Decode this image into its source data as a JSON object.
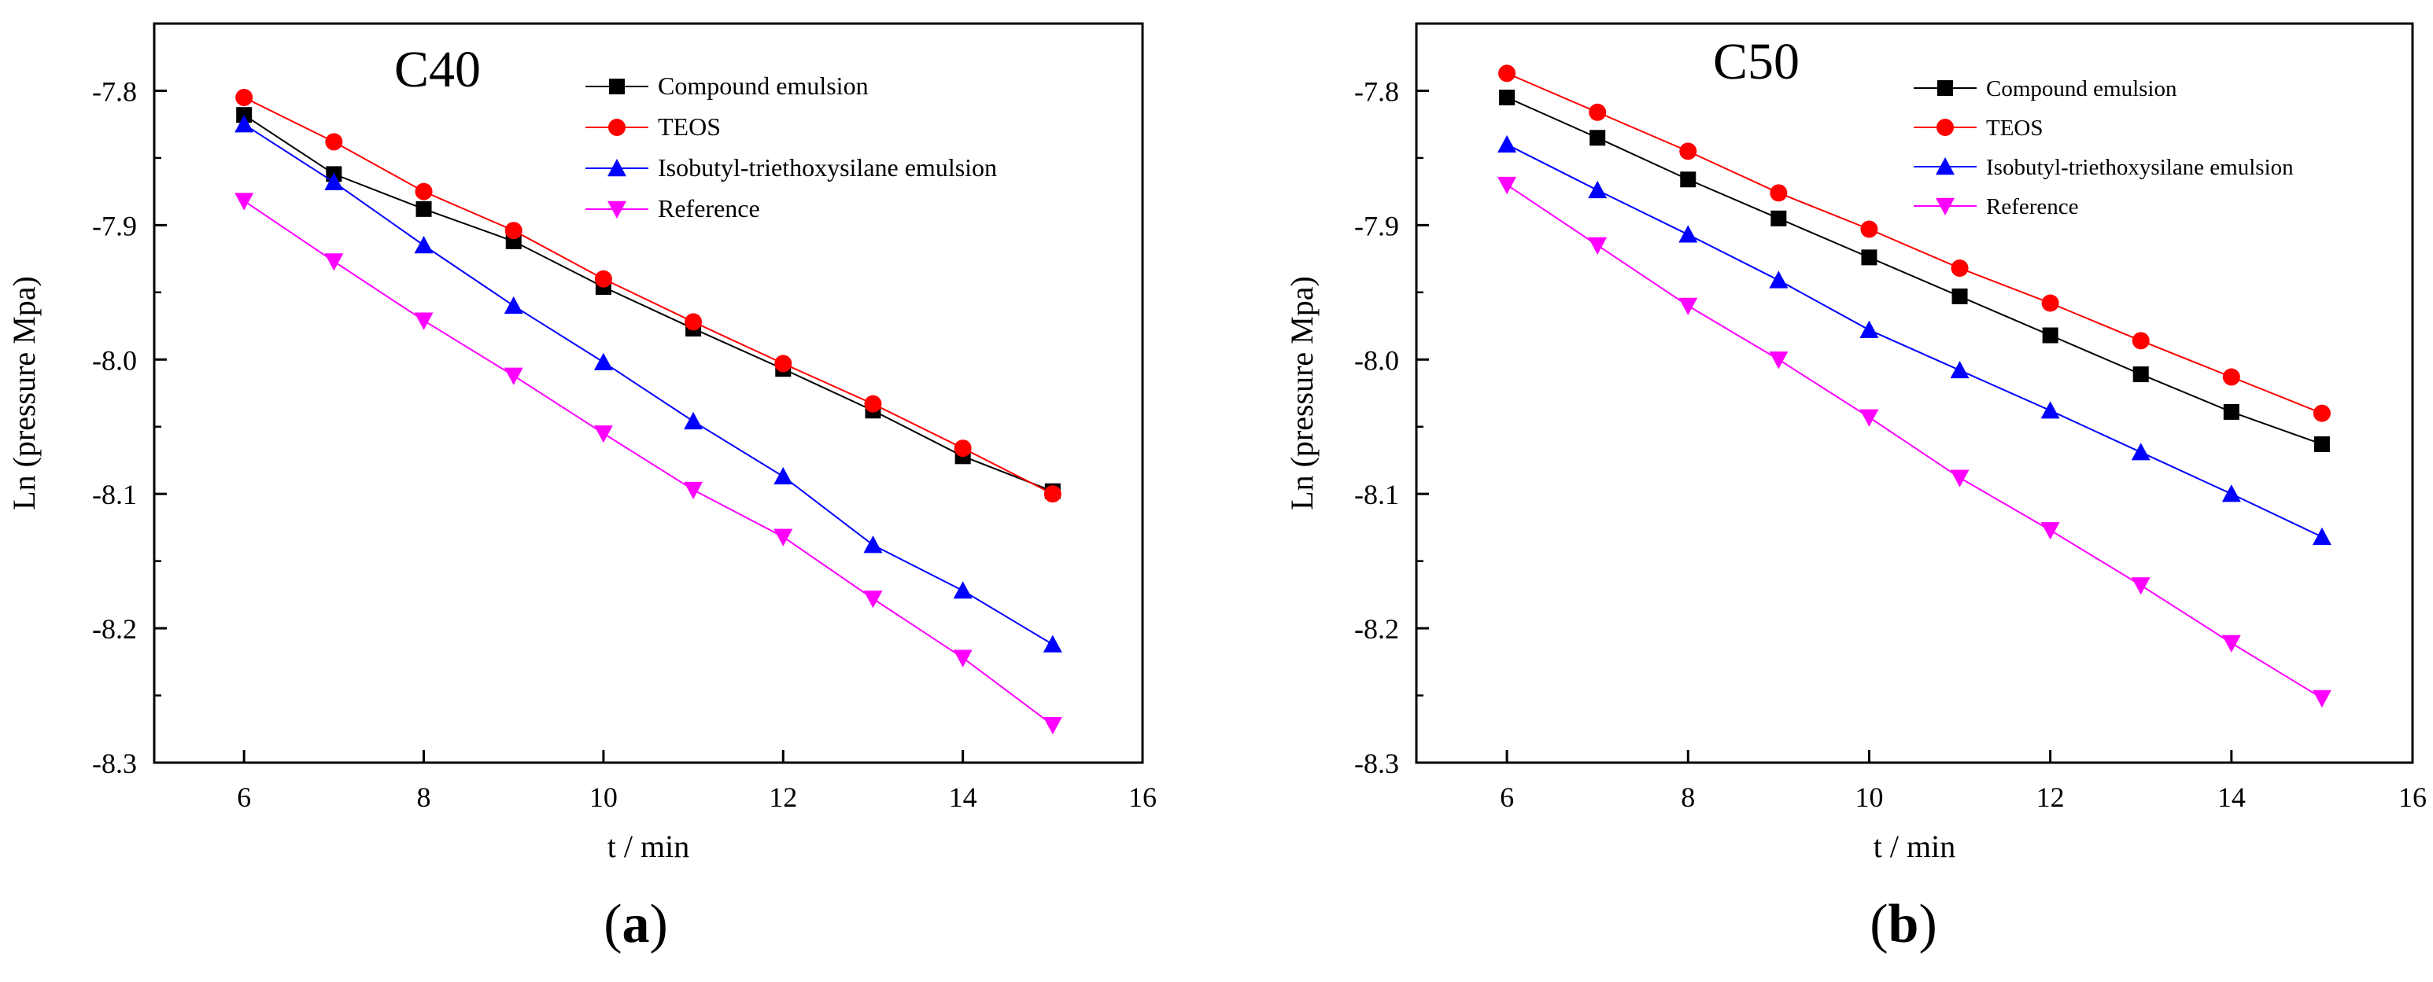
{
  "colors": {
    "compound": "#000000",
    "teos": "#ff0000",
    "isobutyl": "#0000ff",
    "reference": "#ff00ff"
  },
  "chart_data": [
    {
      "type": "line",
      "panel_label": "(a)",
      "panel_letter": "a",
      "inset_title": "C40",
      "xlabel": "t / min",
      "ylabel": "Ln (pressure Mpa)",
      "xlim": [
        5,
        16
      ],
      "ylim": [
        -8.3,
        -7.75
      ],
      "xticks": [
        6,
        8,
        10,
        12,
        14,
        16
      ],
      "xtick_labels": [
        "6",
        "8",
        "10",
        "12",
        "14",
        "16"
      ],
      "yticks": [
        -7.8,
        -7.9,
        -8.0,
        -8.1,
        -8.2,
        -8.3
      ],
      "ytick_labels": [
        "-7.8",
        "-7.9",
        "-8.0",
        "-8.1",
        "-8.2",
        "-8.3"
      ],
      "legend_position": "top-right",
      "x": [
        6,
        7,
        8,
        9,
        10,
        11,
        12,
        13,
        14,
        15
      ],
      "series": [
        {
          "name": "Compound emulsion",
          "color_key": "compound",
          "marker": "square",
          "values": [
            -7.818,
            -7.862,
            -7.888,
            -7.912,
            -7.946,
            -7.977,
            -8.007,
            -8.038,
            -8.072,
            -8.098
          ]
        },
        {
          "name": "TEOS",
          "color_key": "teos",
          "marker": "circle",
          "values": [
            -7.805,
            -7.838,
            -7.875,
            -7.904,
            -7.94,
            -7.972,
            -8.003,
            -8.033,
            -8.066,
            -8.1
          ]
        },
        {
          "name": "Isobutyl-triethoxysilane emulsion",
          "color_key": "isobutyl",
          "marker": "triangle-up",
          "values": [
            -7.825,
            -7.868,
            -7.915,
            -7.96,
            -8.002,
            -8.046,
            -8.087,
            -8.138,
            -8.172,
            -8.212
          ]
        },
        {
          "name": "Reference",
          "color_key": "reference",
          "marker": "triangle-down",
          "values": [
            -7.882,
            -7.927,
            -7.971,
            -8.012,
            -8.055,
            -8.097,
            -8.132,
            -8.178,
            -8.222,
            -8.272
          ]
        }
      ]
    },
    {
      "type": "line",
      "panel_label": "(b)",
      "panel_letter": "b",
      "inset_title": "C50",
      "xlabel": "t / min",
      "ylabel": "Ln (pressure Mpa)",
      "xlim": [
        5,
        16
      ],
      "ylim": [
        -8.3,
        -7.75
      ],
      "xticks": [
        6,
        8,
        10,
        12,
        14,
        16
      ],
      "xtick_labels": [
        "6",
        "8",
        "10",
        "12",
        "14",
        "16"
      ],
      "yticks": [
        -7.8,
        -7.9,
        -8.0,
        -8.1,
        -8.2,
        -8.3
      ],
      "ytick_labels": [
        "-7.8",
        "-7.9",
        "-8.0",
        "-8.1",
        "-8.2",
        "-8.3"
      ],
      "legend_position": "top-right",
      "x": [
        6,
        7,
        8,
        9,
        10,
        11,
        12,
        13,
        14,
        15
      ],
      "series": [
        {
          "name": "Compound emulsion",
          "color_key": "compound",
          "marker": "square",
          "values": [
            -7.805,
            -7.835,
            -7.866,
            -7.895,
            -7.924,
            -7.953,
            -7.982,
            -8.011,
            -8.039,
            -8.063
          ]
        },
        {
          "name": "TEOS",
          "color_key": "teos",
          "marker": "circle",
          "values": [
            -7.787,
            -7.816,
            -7.845,
            -7.876,
            -7.903,
            -7.932,
            -7.958,
            -7.986,
            -8.013,
            -8.04
          ]
        },
        {
          "name": "Isobutyl-triethoxysilane emulsion",
          "color_key": "isobutyl",
          "marker": "triangle-up",
          "values": [
            -7.84,
            -7.874,
            -7.907,
            -7.941,
            -7.978,
            -8.008,
            -8.038,
            -8.069,
            -8.1,
            -8.132
          ]
        },
        {
          "name": "Reference",
          "color_key": "reference",
          "marker": "triangle-down",
          "values": [
            -7.87,
            -7.915,
            -7.96,
            -8.0,
            -8.043,
            -8.088,
            -8.127,
            -8.168,
            -8.211,
            -8.252
          ]
        }
      ]
    }
  ]
}
